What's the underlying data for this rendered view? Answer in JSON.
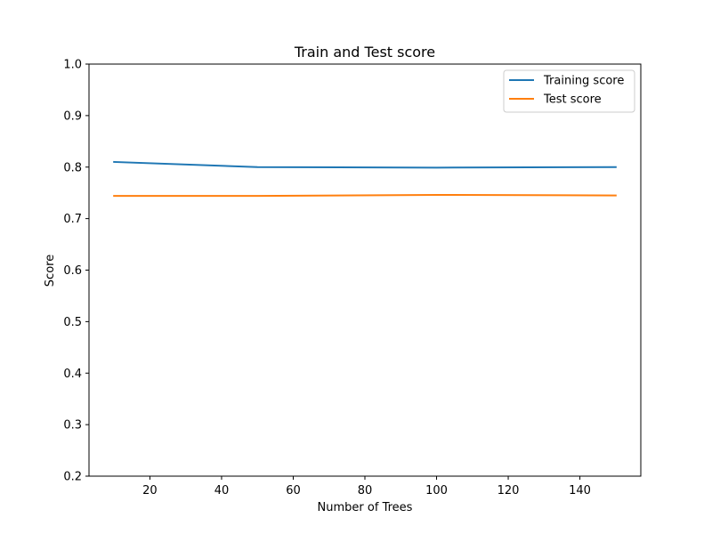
{
  "chart_data": {
    "type": "line",
    "title": "Train and Test score",
    "xlabel": "Number of Trees",
    "ylabel": "Score",
    "xlim": [
      3,
      157
    ],
    "ylim": [
      0.2,
      1.0
    ],
    "xticks": [
      20,
      40,
      60,
      80,
      100,
      120,
      140
    ],
    "yticks": [
      0.2,
      0.3,
      0.4,
      0.5,
      0.6,
      0.7,
      0.8,
      0.9,
      1.0
    ],
    "grid": false,
    "legend_position": "top-right",
    "series": [
      {
        "name": "Training score",
        "color": "#1f77b4",
        "x": [
          10,
          50,
          100,
          150
        ],
        "y": [
          0.81,
          0.8,
          0.799,
          0.8
        ]
      },
      {
        "name": "Test score",
        "color": "#ff7f0e",
        "x": [
          10,
          50,
          100,
          150
        ],
        "y": [
          0.744,
          0.744,
          0.746,
          0.745
        ]
      }
    ]
  }
}
